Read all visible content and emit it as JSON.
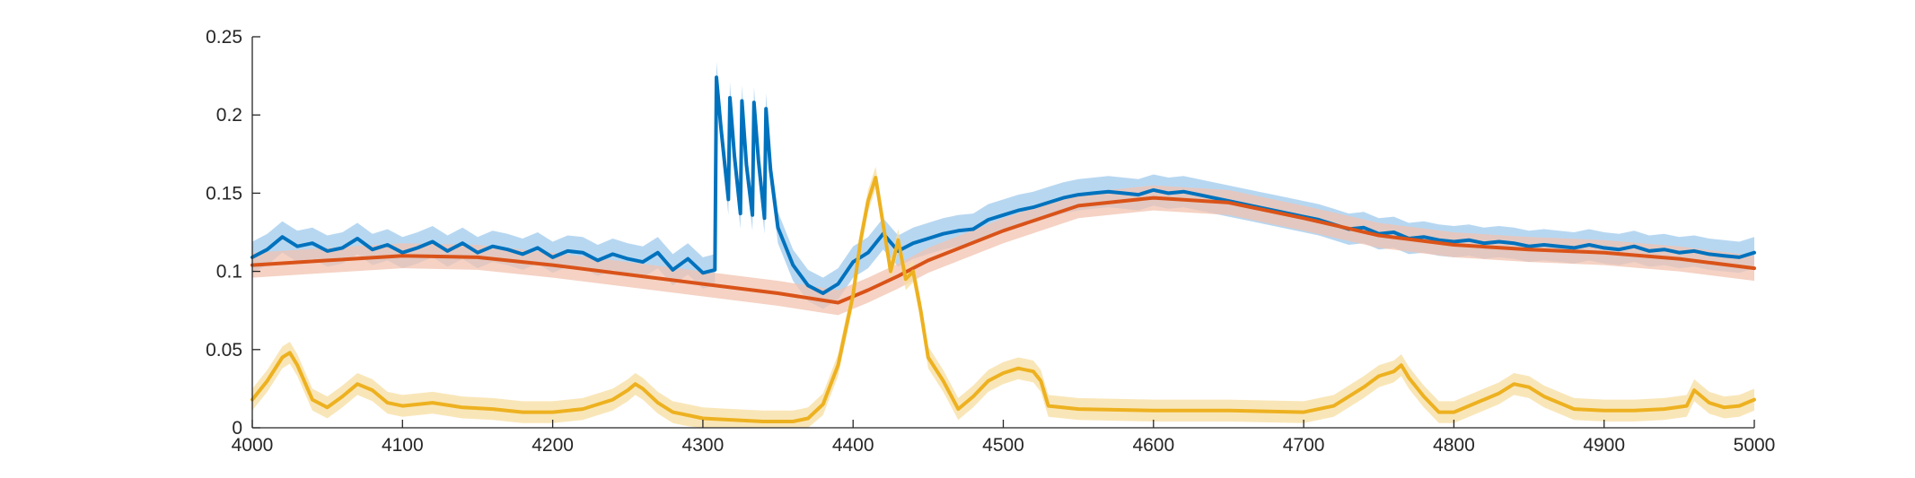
{
  "chart_data": {
    "type": "line",
    "title": "",
    "xlabel": "",
    "ylabel": "",
    "xlim": [
      4000,
      5000
    ],
    "ylim": [
      0,
      0.25
    ],
    "grid": false,
    "legend": "none",
    "xticks": [
      4000,
      4100,
      4200,
      4300,
      4400,
      4500,
      4600,
      4700,
      4800,
      4900,
      5000
    ],
    "yticks": [
      0,
      0.05,
      0.1,
      0.15,
      0.2,
      0.25
    ],
    "xtick_labels": [
      "4000",
      "4100",
      "4200",
      "4300",
      "4400",
      "4500",
      "4600",
      "4700",
      "4800",
      "4900",
      "5000"
    ],
    "ytick_labels": [
      "0",
      "0.05",
      "0.1",
      "0.15",
      "0.2",
      "0.25"
    ],
    "series": [
      {
        "color": "#0072BD",
        "band_color": "#9fc9ec",
        "band_halfwidth": 0.01,
        "x": [
          4000,
          4010,
          4020,
          4030,
          4040,
          4050,
          4060,
          4070,
          4080,
          4090,
          4100,
          4110,
          4120,
          4130,
          4140,
          4150,
          4160,
          4170,
          4180,
          4190,
          4200,
          4210,
          4220,
          4230,
          4240,
          4250,
          4260,
          4270,
          4280,
          4290,
          4300,
          4308,
          4309,
          4312,
          4317,
          4318,
          4321,
          4325,
          4326,
          4329,
          4333,
          4334,
          4337,
          4341,
          4342,
          4345,
          4350,
          4360,
          4370,
          4380,
          4390,
          4400,
          4410,
          4420,
          4430,
          4440,
          4450,
          4460,
          4470,
          4480,
          4490,
          4500,
          4510,
          4520,
          4530,
          4540,
          4550,
          4560,
          4570,
          4580,
          4590,
          4600,
          4610,
          4620,
          4630,
          4640,
          4650,
          4660,
          4670,
          4680,
          4690,
          4700,
          4710,
          4720,
          4730,
          4740,
          4750,
          4760,
          4770,
          4780,
          4790,
          4800,
          4810,
          4820,
          4830,
          4840,
          4850,
          4860,
          4870,
          4880,
          4890,
          4900,
          4910,
          4920,
          4930,
          4940,
          4950,
          4960,
          4970,
          4980,
          4990,
          5000
        ],
        "y": [
          0.109,
          0.114,
          0.122,
          0.116,
          0.118,
          0.113,
          0.115,
          0.121,
          0.114,
          0.117,
          0.112,
          0.115,
          0.119,
          0.113,
          0.118,
          0.112,
          0.116,
          0.114,
          0.111,
          0.115,
          0.109,
          0.113,
          0.112,
          0.107,
          0.111,
          0.108,
          0.106,
          0.112,
          0.101,
          0.108,
          0.099,
          0.101,
          0.224,
          0.192,
          0.146,
          0.211,
          0.174,
          0.137,
          0.209,
          0.168,
          0.136,
          0.208,
          0.171,
          0.134,
          0.204,
          0.165,
          0.128,
          0.104,
          0.091,
          0.086,
          0.092,
          0.106,
          0.112,
          0.124,
          0.113,
          0.118,
          0.121,
          0.124,
          0.126,
          0.127,
          0.133,
          0.136,
          0.139,
          0.141,
          0.144,
          0.147,
          0.149,
          0.15,
          0.151,
          0.15,
          0.149,
          0.152,
          0.15,
          0.151,
          0.149,
          0.147,
          0.145,
          0.143,
          0.141,
          0.139,
          0.137,
          0.135,
          0.133,
          0.13,
          0.127,
          0.128,
          0.124,
          0.125,
          0.121,
          0.122,
          0.12,
          0.119,
          0.12,
          0.118,
          0.119,
          0.118,
          0.116,
          0.117,
          0.116,
          0.115,
          0.117,
          0.115,
          0.114,
          0.116,
          0.113,
          0.114,
          0.112,
          0.113,
          0.111,
          0.11,
          0.109,
          0.112
        ]
      },
      {
        "color": "#D95319",
        "band_color": "#f2c3b0",
        "band_halfwidth": 0.008,
        "x": [
          4000,
          4050,
          4100,
          4150,
          4200,
          4250,
          4300,
          4350,
          4390,
          4410,
          4430,
          4450,
          4500,
          4550,
          4600,
          4650,
          4700,
          4750,
          4800,
          4850,
          4900,
          4950,
          5000
        ],
        "y": [
          0.104,
          0.107,
          0.11,
          0.109,
          0.104,
          0.098,
          0.092,
          0.086,
          0.08,
          0.088,
          0.097,
          0.107,
          0.126,
          0.142,
          0.147,
          0.144,
          0.134,
          0.123,
          0.117,
          0.114,
          0.112,
          0.108,
          0.102
        ]
      },
      {
        "color": "#EDB120",
        "band_color": "#f7dea0",
        "band_halfwidth": 0.007,
        "x": [
          4000,
          4010,
          4020,
          4025,
          4030,
          4040,
          4050,
          4060,
          4070,
          4080,
          4090,
          4100,
          4120,
          4140,
          4160,
          4180,
          4200,
          4220,
          4240,
          4250,
          4255,
          4260,
          4270,
          4280,
          4290,
          4300,
          4320,
          4340,
          4360,
          4370,
          4380,
          4390,
          4400,
          4405,
          4410,
          4415,
          4420,
          4425,
          4430,
          4435,
          4440,
          4445,
          4450,
          4460,
          4470,
          4480,
          4490,
          4500,
          4510,
          4520,
          4525,
          4530,
          4550,
          4600,
          4650,
          4700,
          4720,
          4740,
          4750,
          4760,
          4765,
          4770,
          4780,
          4790,
          4800,
          4820,
          4830,
          4840,
          4850,
          4860,
          4870,
          4880,
          4900,
          4920,
          4940,
          4955,
          4960,
          4970,
          4980,
          4990,
          5000
        ],
        "y": [
          0.018,
          0.03,
          0.045,
          0.048,
          0.04,
          0.018,
          0.013,
          0.02,
          0.028,
          0.024,
          0.016,
          0.014,
          0.016,
          0.013,
          0.012,
          0.01,
          0.01,
          0.012,
          0.018,
          0.024,
          0.028,
          0.025,
          0.016,
          0.01,
          0.008,
          0.006,
          0.005,
          0.004,
          0.004,
          0.006,
          0.015,
          0.04,
          0.085,
          0.12,
          0.145,
          0.16,
          0.13,
          0.1,
          0.12,
          0.095,
          0.1,
          0.075,
          0.045,
          0.03,
          0.012,
          0.02,
          0.03,
          0.035,
          0.038,
          0.036,
          0.03,
          0.014,
          0.012,
          0.011,
          0.011,
          0.01,
          0.014,
          0.026,
          0.033,
          0.036,
          0.04,
          0.032,
          0.02,
          0.01,
          0.01,
          0.018,
          0.022,
          0.028,
          0.026,
          0.02,
          0.016,
          0.012,
          0.011,
          0.011,
          0.012,
          0.014,
          0.024,
          0.016,
          0.013,
          0.014,
          0.018
        ]
      }
    ]
  }
}
